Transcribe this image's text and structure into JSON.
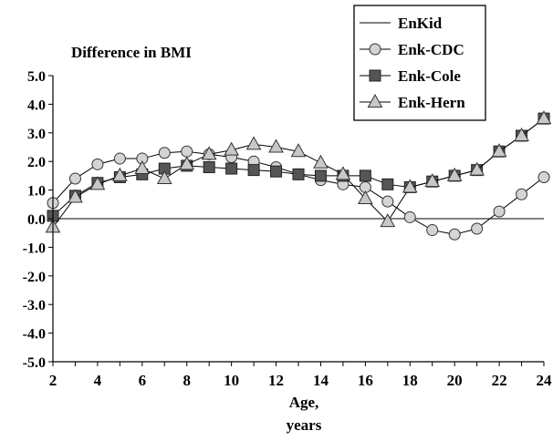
{
  "chart_data": {
    "type": "line",
    "title": "Difference in BMI",
    "xlabel": [
      "Age,",
      "years"
    ],
    "ylabel": "",
    "x": [
      2,
      3,
      4,
      5,
      6,
      7,
      8,
      9,
      10,
      11,
      12,
      13,
      14,
      15,
      16,
      17,
      18,
      19,
      20,
      21,
      22,
      23,
      24
    ],
    "xlim": [
      2,
      24
    ],
    "ylim": [
      -5.0,
      5.0
    ],
    "xticks": [
      "2",
      "4",
      "6",
      "8",
      "10",
      "12",
      "14",
      "16",
      "18",
      "20",
      "22",
      "24"
    ],
    "yticks": [
      "5.0",
      "4.0",
      "3.0",
      "2.0",
      "1.0",
      "0.0",
      "-1.0",
      "-2.0",
      "-3.0",
      "-4.0",
      "-5.0"
    ],
    "legend_position": "top-right",
    "series": [
      {
        "name": "EnKid",
        "marker": "none",
        "values": [
          0,
          0,
          0,
          0,
          0,
          0,
          0,
          0,
          0,
          0,
          0,
          0,
          0,
          0,
          0,
          0,
          0,
          0,
          0,
          0,
          0,
          0,
          0
        ]
      },
      {
        "name": "Enk-CDC",
        "marker": "circle",
        "values": [
          0.55,
          1.4,
          1.9,
          2.1,
          2.1,
          2.3,
          2.35,
          2.25,
          2.15,
          2.0,
          1.8,
          1.55,
          1.35,
          1.2,
          1.1,
          0.6,
          0.05,
          -0.4,
          -0.55,
          -0.35,
          0.25,
          0.85,
          1.45
        ]
      },
      {
        "name": "Enk-Cole",
        "marker": "square",
        "values": [
          0.1,
          0.8,
          1.25,
          1.45,
          1.55,
          1.75,
          1.85,
          1.8,
          1.75,
          1.7,
          1.65,
          1.55,
          1.5,
          1.5,
          1.5,
          1.2,
          1.1,
          1.3,
          1.5,
          1.7,
          2.35,
          2.9,
          3.5
        ]
      },
      {
        "name": "Enk-Hern",
        "marker": "triangle",
        "values": [
          -0.3,
          0.75,
          1.2,
          1.5,
          1.75,
          1.4,
          1.9,
          2.25,
          2.4,
          2.6,
          2.5,
          2.35,
          1.95,
          1.55,
          0.7,
          -0.1,
          1.1,
          1.3,
          1.5,
          1.7,
          2.35,
          2.9,
          3.5
        ]
      }
    ]
  }
}
